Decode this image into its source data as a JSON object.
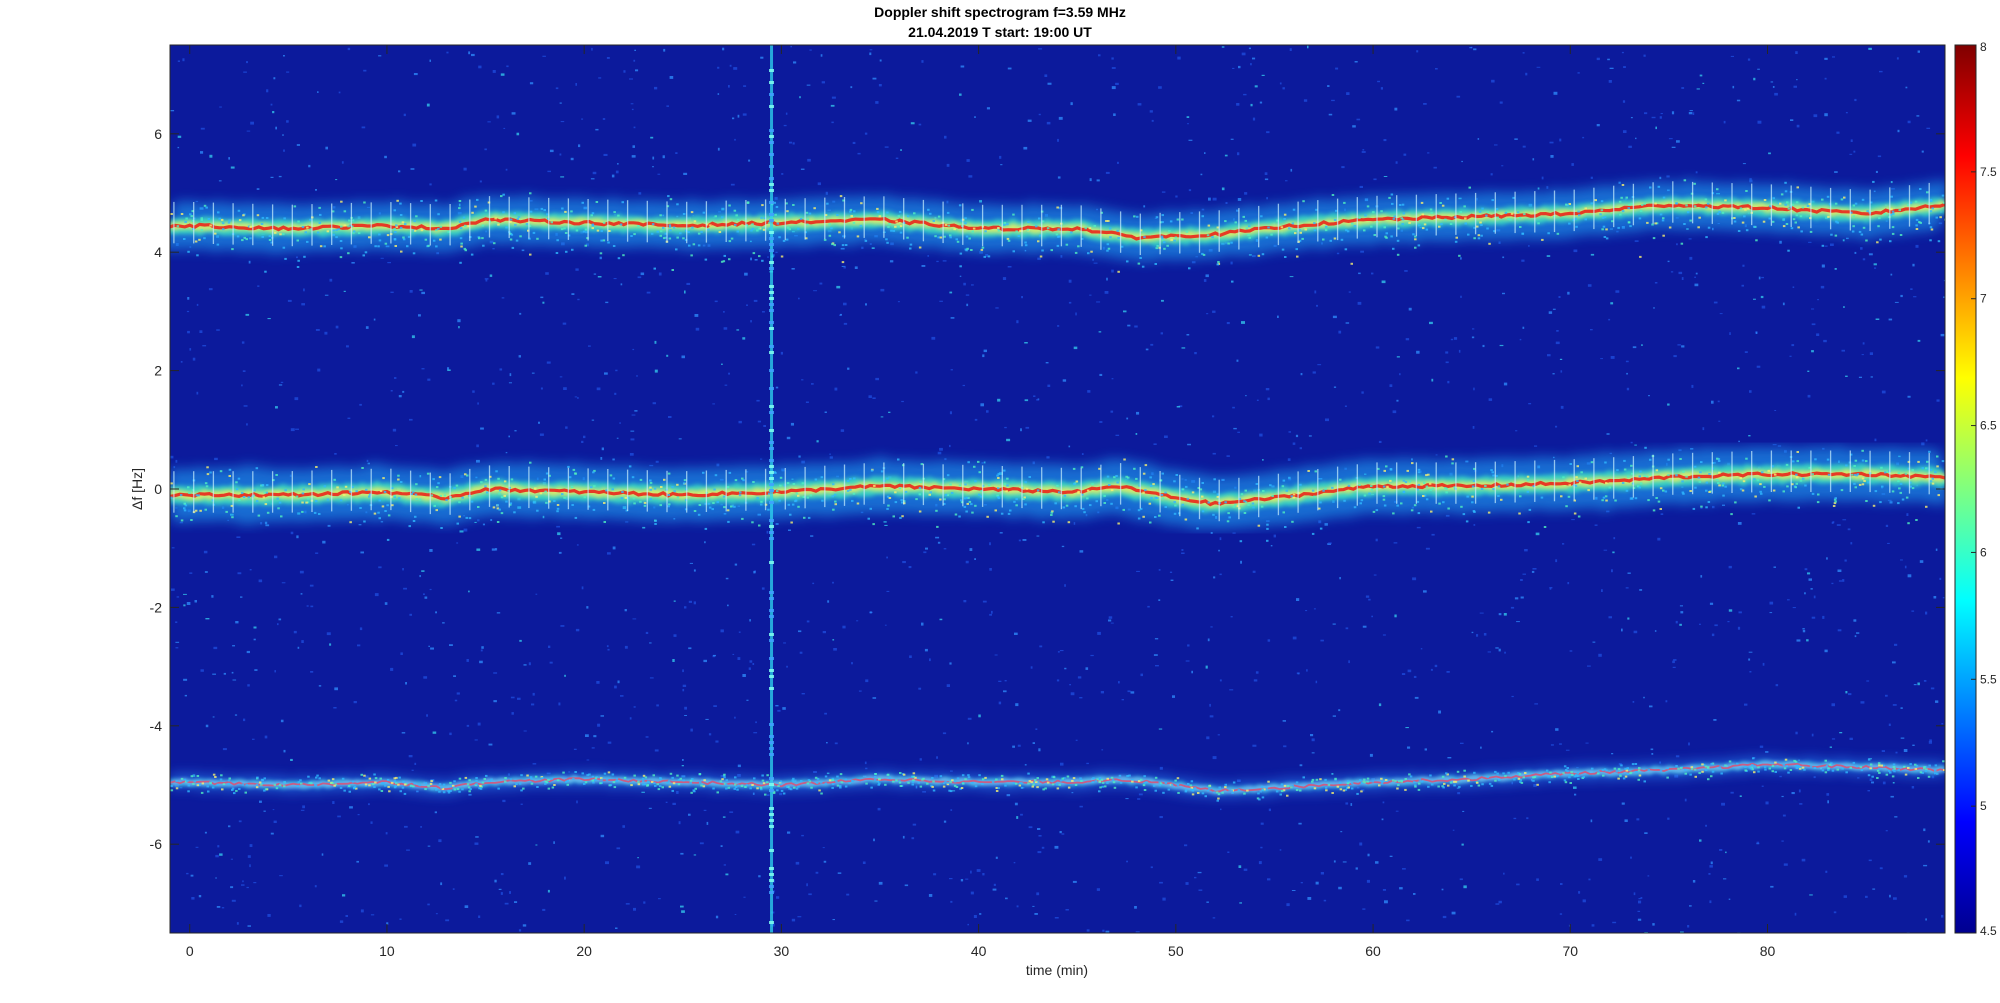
{
  "chart_data": {
    "type": "heatmap",
    "title": "Doppler shift spectrogram f=3.59 MHz",
    "subtitle": "21.04.2019   T start: 19:00 UT",
    "xlabel": "time (min)",
    "ylabel": "Δf [Hz]",
    "xlim": [
      -1,
      89
    ],
    "ylim": [
      -7.5,
      7.5
    ],
    "x_ticks": [
      "0",
      "10",
      "20",
      "30",
      "40",
      "50",
      "60",
      "70",
      "80"
    ],
    "y_ticks": [
      "-6",
      "-4",
      "-2",
      "0",
      "2",
      "4",
      "6"
    ],
    "colorbar": {
      "range": [
        4.5,
        8
      ],
      "ticks": [
        "4.5",
        "5",
        "5.5",
        "6",
        "6.5",
        "7",
        "7.5",
        "8"
      ],
      "colormap": "jet"
    },
    "grid": false,
    "series": [
      {
        "x": [
          0,
          5,
          10,
          13,
          15,
          20,
          25,
          30,
          35,
          40,
          45,
          48,
          52,
          56,
          60,
          65,
          70,
          73,
          75,
          80,
          85,
          89
        ],
        "y": [
          4.45,
          4.4,
          4.45,
          4.4,
          4.55,
          4.5,
          4.45,
          4.5,
          4.55,
          4.4,
          4.4,
          4.25,
          4.3,
          4.45,
          4.55,
          4.6,
          4.65,
          4.75,
          4.8,
          4.75,
          4.65,
          4.8
        ]
      },
      {
        "x": [
          0,
          5,
          10,
          13,
          15,
          20,
          25,
          30,
          35,
          40,
          45,
          47,
          50,
          52,
          55,
          60,
          65,
          70,
          73,
          75,
          80,
          85,
          89
        ],
        "y": [
          -0.1,
          -0.1,
          -0.05,
          -0.15,
          0.0,
          -0.05,
          -0.1,
          -0.05,
          0.05,
          0.0,
          -0.05,
          0.05,
          -0.15,
          -0.25,
          -0.15,
          0.05,
          0.05,
          0.1,
          0.15,
          0.2,
          0.25,
          0.25,
          0.2
        ]
      },
      {
        "x": [
          0,
          5,
          10,
          13,
          15,
          20,
          25,
          30,
          35,
          40,
          45,
          47,
          50,
          52,
          55,
          60,
          65,
          70,
          75,
          80,
          85,
          89
        ],
        "y": [
          -4.95,
          -5.0,
          -4.95,
          -5.05,
          -4.95,
          -4.9,
          -4.95,
          -5.0,
          -4.9,
          -4.95,
          -4.95,
          -4.9,
          -5.0,
          -5.1,
          -5.05,
          -4.95,
          -4.9,
          -4.8,
          -4.75,
          -4.65,
          -4.7,
          -4.75
        ]
      }
    ],
    "interference_line": {
      "x": 29.5
    }
  }
}
